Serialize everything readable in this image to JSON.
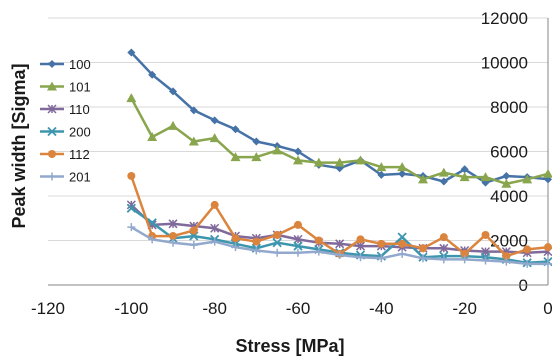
{
  "chart_data": {
    "type": "line",
    "xlabel": "Stress [MPa]",
    "ylabel": "Peak width [Sigma]",
    "xlim": [
      -120,
      0
    ],
    "ylim": [
      0,
      12000
    ],
    "xticks": [
      "-120",
      "-100",
      "-80",
      "-60",
      "-40",
      "-20",
      "0"
    ],
    "yticks": [
      "0",
      "2000",
      "4000",
      "6000",
      "8000",
      "10000",
      "12000"
    ],
    "grid": "horizontal only",
    "legend_position": "left",
    "x": [
      -100,
      -95,
      -90,
      -85,
      -80,
      -75,
      -70,
      -65,
      -60,
      -55,
      -50,
      -45,
      -40,
      -35,
      -30,
      -25,
      -20,
      -15,
      -10,
      -5,
      0
    ],
    "series": [
      {
        "name": "100",
        "color": "#4572A7",
        "marker": "diamond",
        "values": [
          10450,
          9450,
          8700,
          7850,
          7400,
          7000,
          6450,
          6250,
          6000,
          5400,
          5250,
          5600,
          4950,
          5000,
          4900,
          4650,
          5200,
          4600,
          4900,
          4850,
          4750
        ]
      },
      {
        "name": "101",
        "color": "#89A54E",
        "marker": "triangle",
        "values": [
          8400,
          6650,
          7150,
          6450,
          6600,
          5750,
          5750,
          6050,
          5600,
          5500,
          5500,
          5600,
          5300,
          5300,
          4750,
          5050,
          4850,
          4850,
          4550,
          4750,
          5000
        ]
      },
      {
        "name": "110",
        "color": "#80699B",
        "marker": "star",
        "values": [
          3600,
          2700,
          2750,
          2650,
          2550,
          2200,
          2100,
          2250,
          2050,
          1900,
          1850,
          1750,
          1750,
          1700,
          1650,
          1650,
          1550,
          1500,
          1500,
          1450,
          1500
        ]
      },
      {
        "name": "200",
        "color": "#3D96AE",
        "marker": "asterisk",
        "values": [
          3450,
          2800,
          2100,
          2200,
          2050,
          1850,
          1650,
          1900,
          1750,
          1600,
          1450,
          1350,
          1300,
          2150,
          1250,
          1300,
          1300,
          1250,
          1150,
          1000,
          1050
        ]
      },
      {
        "name": "112",
        "color": "#DB843D",
        "marker": "circle",
        "values": [
          4900,
          2200,
          2200,
          2450,
          3600,
          2100,
          1950,
          2250,
          2700,
          2000,
          1400,
          2050,
          1850,
          1850,
          1650,
          2150,
          1400,
          2250,
          1300,
          1600,
          1700
        ]
      },
      {
        "name": "201",
        "color": "#92A8CD",
        "marker": "plus",
        "values": [
          2600,
          2050,
          1900,
          1800,
          1950,
          1700,
          1550,
          1450,
          1450,
          1500,
          1350,
          1250,
          1200,
          1400,
          1200,
          1150,
          1150,
          1100,
          1050,
          950,
          950
        ]
      }
    ]
  }
}
